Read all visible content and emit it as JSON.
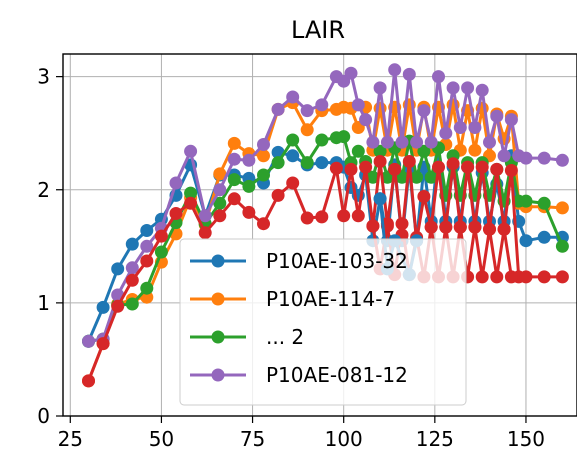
{
  "chart_data": {
    "type": "line",
    "title": "LAIR",
    "xlabel": "",
    "ylabel": "",
    "xlim": [
      23,
      164
    ],
    "ylim": [
      0,
      3.2
    ],
    "xticks": [
      25,
      50,
      75,
      100,
      125,
      150
    ],
    "yticks": [
      0,
      1,
      2,
      3
    ],
    "grid": true,
    "legend_position": "lower-center",
    "series": [
      {
        "name": "P10AE-103-32",
        "color": "#1f77b4",
        "x": [
          30,
          34,
          38,
          42,
          46,
          50,
          54,
          58,
          62,
          66,
          70,
          74,
          78,
          82,
          86,
          90,
          94,
          98,
          100,
          102,
          104,
          106,
          108,
          110,
          112,
          114,
          116,
          118,
          120,
          122,
          124,
          126,
          128,
          130,
          132,
          134,
          136,
          138,
          140,
          142,
          144,
          146,
          148,
          150,
          155,
          160
        ],
        "y": [
          0.66,
          0.96,
          1.3,
          1.52,
          1.64,
          1.74,
          1.95,
          2.22,
          1.77,
          2.13,
          2.13,
          2.1,
          2.06,
          2.33,
          2.3,
          2.22,
          2.24,
          2.24,
          2.2,
          2.02,
          1.95,
          2.13,
          1.55,
          1.92,
          1.55,
          2.22,
          1.55,
          2.2,
          1.55,
          2.2,
          1.72,
          2.37,
          1.72,
          2.2,
          1.72,
          2.2,
          1.72,
          2.15,
          1.72,
          2.05,
          1.72,
          2.3,
          1.72,
          1.55,
          1.58,
          1.58
        ]
      },
      {
        "name": "P10AE-114-7",
        "color": "#ff7f0e",
        "x": [
          30,
          34,
          38,
          42,
          46,
          50,
          54,
          58,
          62,
          66,
          70,
          74,
          78,
          82,
          86,
          90,
          94,
          98,
          100,
          102,
          104,
          106,
          108,
          110,
          112,
          114,
          116,
          118,
          120,
          122,
          124,
          126,
          128,
          130,
          132,
          134,
          136,
          138,
          140,
          142,
          144,
          146,
          148,
          150,
          155,
          160
        ],
        "y": [
          0.31,
          0.64,
          0.99,
          1.03,
          1.05,
          1.36,
          1.61,
          1.93,
          1.69,
          2.14,
          2.41,
          2.32,
          2.3,
          2.71,
          2.77,
          2.53,
          2.7,
          2.71,
          2.73,
          2.72,
          2.55,
          2.73,
          2.35,
          2.72,
          2.35,
          2.73,
          2.35,
          2.75,
          2.35,
          2.73,
          2.35,
          2.73,
          2.4,
          2.75,
          2.35,
          2.7,
          2.35,
          2.72,
          2.3,
          2.67,
          2.45,
          2.65,
          1.88,
          1.85,
          1.85,
          1.84
        ]
      },
      {
        "name": "... 2",
        "color": "#2ca02c",
        "x": [
          30,
          34,
          38,
          42,
          46,
          50,
          54,
          58,
          62,
          66,
          70,
          74,
          78,
          82,
          86,
          90,
          94,
          98,
          100,
          102,
          104,
          106,
          108,
          110,
          112,
          114,
          116,
          118,
          120,
          122,
          124,
          126,
          128,
          130,
          132,
          134,
          136,
          138,
          140,
          142,
          144,
          146,
          148,
          150,
          155,
          160
        ],
        "y": [
          0.66,
          0.68,
          0.98,
          0.99,
          1.13,
          1.45,
          1.71,
          1.97,
          1.7,
          1.88,
          2.09,
          2.03,
          2.13,
          2.24,
          2.44,
          2.24,
          2.44,
          2.46,
          2.47,
          2.24,
          2.34,
          2.25,
          2.11,
          2.34,
          2.11,
          2.37,
          2.11,
          2.43,
          2.11,
          2.34,
          2.11,
          2.37,
          1.95,
          2.3,
          1.95,
          2.24,
          1.95,
          2.24,
          1.95,
          2.18,
          1.9,
          2.24,
          1.9,
          1.9,
          1.88,
          1.5
        ]
      },
      {
        "name": "P10AE-081-12",
        "color": "#9467bd",
        "x": [
          30,
          34,
          38,
          42,
          46,
          50,
          54,
          58,
          62,
          66,
          70,
          74,
          78,
          82,
          86,
          90,
          94,
          98,
          100,
          102,
          104,
          106,
          108,
          110,
          112,
          114,
          116,
          118,
          120,
          122,
          124,
          126,
          128,
          130,
          132,
          134,
          136,
          138,
          140,
          142,
          144,
          146,
          148,
          150,
          155,
          160
        ],
        "y": [
          0.66,
          0.68,
          1.07,
          1.31,
          1.5,
          1.66,
          2.06,
          2.34,
          1.77,
          2.0,
          2.27,
          2.26,
          2.4,
          2.71,
          2.82,
          2.7,
          2.75,
          3.0,
          2.96,
          3.03,
          2.75,
          2.62,
          2.42,
          2.9,
          2.42,
          3.06,
          2.42,
          3.02,
          2.42,
          2.7,
          2.42,
          3.0,
          2.5,
          2.9,
          2.55,
          2.9,
          2.55,
          2.88,
          2.42,
          2.65,
          2.3,
          2.62,
          2.3,
          2.28,
          2.28,
          2.26
        ]
      },
      {
        "name": "",
        "color": "#d62728",
        "x": [
          30,
          34,
          38,
          42,
          46,
          50,
          54,
          58,
          62,
          66,
          70,
          74,
          78,
          82,
          86,
          90,
          94,
          98,
          100,
          102,
          104,
          106,
          108,
          110,
          112,
          114,
          116,
          118,
          120,
          122,
          124,
          126,
          128,
          130,
          132,
          134,
          136,
          138,
          140,
          142,
          144,
          146,
          148,
          150,
          155,
          160
        ],
        "y": [
          0.31,
          0.64,
          0.97,
          1.2,
          1.37,
          1.59,
          1.79,
          1.88,
          1.62,
          1.77,
          1.92,
          1.8,
          1.7,
          1.95,
          2.06,
          1.75,
          1.76,
          2.19,
          1.77,
          2.18,
          1.77,
          2.2,
          1.68,
          2.25,
          1.7,
          2.18,
          1.6,
          2.25,
          1.55,
          1.94,
          1.67,
          2.2,
          1.67,
          2.23,
          1.67,
          2.2,
          1.67,
          2.2,
          1.65,
          2.18,
          1.65,
          2.17,
          1.23,
          1.23,
          1.23,
          1.23
        ]
      }
    ],
    "segments": [
      {
        "color": "#d62728",
        "points": [
          [
            108,
            1.68
          ],
          [
            110,
            1.3
          ],
          [
            112,
            1.68
          ],
          [
            114,
            1.25
          ],
          [
            116,
            1.7
          ],
          [
            118,
            1.25
          ],
          [
            120,
            1.58
          ],
          [
            122,
            1.23
          ],
          [
            124,
            1.67
          ],
          [
            126,
            1.23
          ],
          [
            128,
            1.67
          ],
          [
            130,
            1.23
          ],
          [
            132,
            1.67
          ],
          [
            134,
            1.23
          ],
          [
            136,
            1.67
          ],
          [
            138,
            1.23
          ],
          [
            140,
            1.65
          ],
          [
            142,
            1.23
          ],
          [
            144,
            1.65
          ],
          [
            146,
            1.23
          ]
        ]
      },
      {
        "color": "#1f77b4",
        "points": [
          [
            110,
            1.92
          ],
          [
            112,
            1.3
          ],
          [
            114,
            1.55
          ],
          [
            118,
            1.25
          ],
          [
            120,
            1.55
          ]
        ]
      }
    ]
  }
}
